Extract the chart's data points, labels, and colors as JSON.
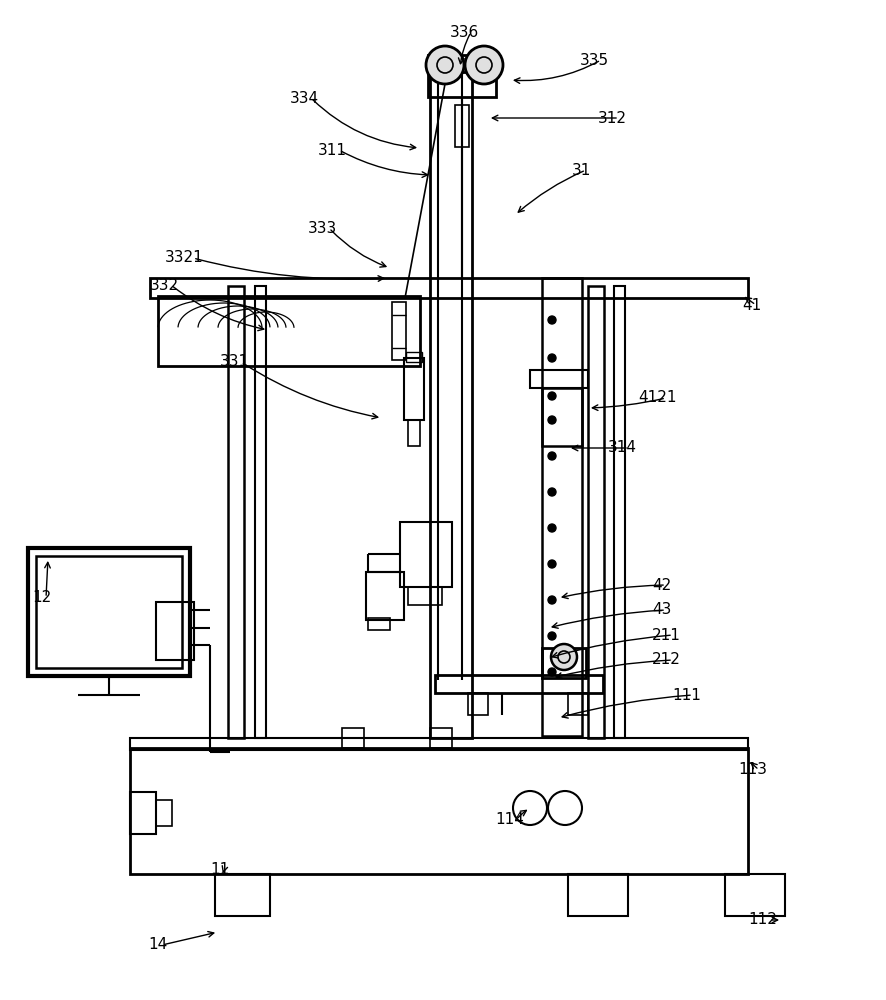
{
  "bg": "#ffffff",
  "lc": "#000000",
  "gray": "#888888",
  "annotations": [
    [
      "336",
      450,
      32,
      460,
      68,
      0.1
    ],
    [
      "335",
      580,
      60,
      510,
      80,
      -0.15
    ],
    [
      "334",
      290,
      98,
      420,
      148,
      0.18
    ],
    [
      "312",
      598,
      118,
      488,
      118,
      -0.0
    ],
    [
      "311",
      318,
      150,
      432,
      175,
      0.12
    ],
    [
      "31",
      572,
      170,
      515,
      215,
      0.08
    ],
    [
      "333",
      308,
      228,
      390,
      268,
      0.12
    ],
    [
      "3321",
      165,
      258,
      388,
      278,
      0.08
    ],
    [
      "332",
      150,
      285,
      268,
      330,
      0.12
    ],
    [
      "41",
      742,
      305,
      742,
      295,
      0.0
    ],
    [
      "331",
      220,
      362,
      382,
      418,
      0.1
    ],
    [
      "4121",
      638,
      398,
      588,
      408,
      -0.05
    ],
    [
      "314",
      608,
      448,
      568,
      448,
      0.0
    ],
    [
      "42",
      652,
      585,
      558,
      598,
      0.05
    ],
    [
      "43",
      652,
      610,
      548,
      628,
      0.05
    ],
    [
      "211",
      652,
      635,
      548,
      658,
      0.05
    ],
    [
      "212",
      652,
      660,
      552,
      678,
      0.05
    ],
    [
      "111",
      672,
      695,
      558,
      718,
      0.05
    ],
    [
      "12",
      32,
      598,
      48,
      558,
      0.0
    ],
    [
      "113",
      738,
      770,
      748,
      760,
      0.0
    ],
    [
      "114",
      495,
      820,
      530,
      808,
      -0.08
    ],
    [
      "11",
      210,
      870,
      222,
      876,
      0.05
    ],
    [
      "112",
      748,
      920,
      782,
      920,
      0.0
    ],
    [
      "14",
      148,
      945,
      218,
      932,
      0.0
    ]
  ]
}
